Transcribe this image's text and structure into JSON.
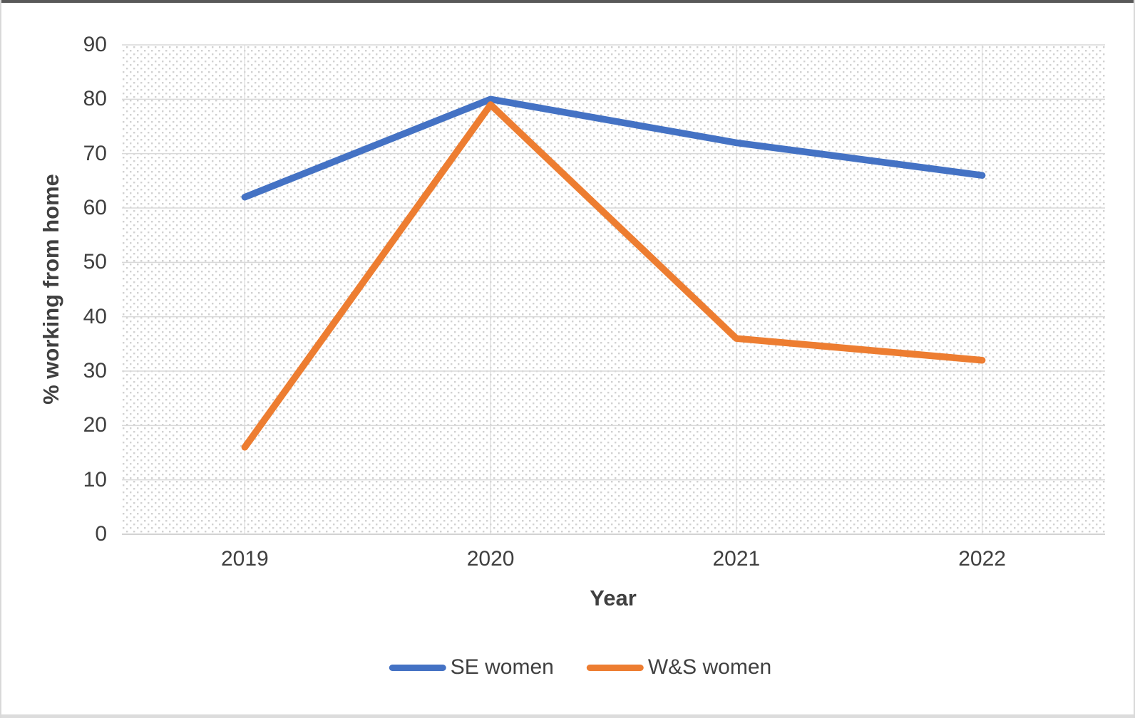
{
  "page": {
    "background": "#ffffff",
    "top_border_color": "#595959",
    "edge_border_color": "#d9d9d9"
  },
  "chart_data": {
    "type": "line",
    "title": "",
    "xlabel": "Year",
    "ylabel": "% working from home",
    "categories": [
      "2019",
      "2020",
      "2021",
      "2022"
    ],
    "series": [
      {
        "name": "SE women",
        "color": "#4472C4",
        "values": [
          62,
          80,
          72,
          66
        ]
      },
      {
        "name": "W&S women",
        "color": "#ED7D31",
        "values": [
          16,
          79,
          36,
          32
        ]
      }
    ],
    "ylim": [
      0,
      90
    ],
    "y_ticks": [
      0,
      10,
      20,
      30,
      40,
      50,
      60,
      70,
      80,
      90
    ],
    "grid": true,
    "gridline_color": "#d9d9d9",
    "axis_line_color": "#c3c3c3",
    "plot_pattern": "diagonal-dot-hatch",
    "pattern_dot_color": "#d1d1d1",
    "axis_text_color": "#404040",
    "legend_position": "bottom",
    "line_width": 9.5
  }
}
